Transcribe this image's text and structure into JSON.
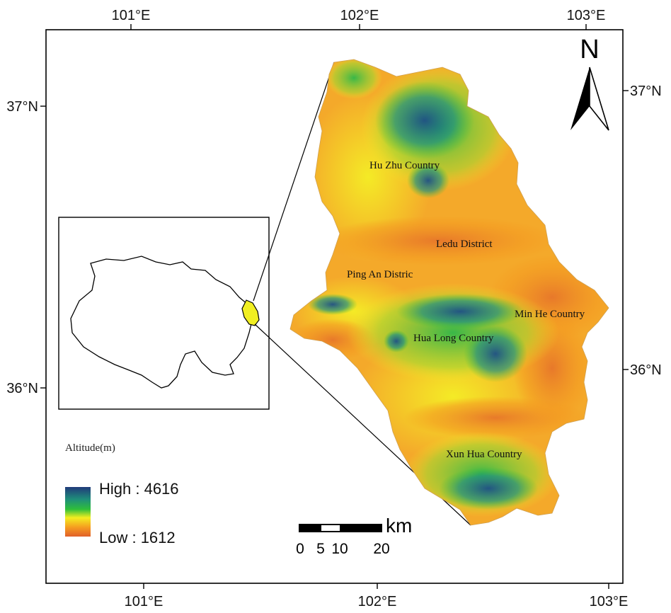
{
  "ticks": {
    "top": [
      "101°E",
      "102°E",
      "103°E"
    ],
    "bottom": [
      "101°E",
      "102°E",
      "103°E"
    ],
    "left": [
      "37°N",
      "36°N"
    ],
    "right": [
      "37°N",
      "36°N"
    ]
  },
  "north_arrow": {
    "letter": "N"
  },
  "places": {
    "huzhu": "Hu Zhu Country",
    "ledu": "Ledu District",
    "pingan": "Ping An Distric",
    "minhe": "Min He Country",
    "hualong": "Hua Long Country",
    "xunhua": "Xun Hua Country"
  },
  "legend": {
    "title": "Altitude(m)",
    "high": "High : 4616",
    "low": "Low : 1612",
    "high_value": 4616,
    "low_value": 1612,
    "colors": [
      "#203a7a",
      "#1f8f7a",
      "#2fbf3a",
      "#f4ee20",
      "#f59a20",
      "#e0602a"
    ]
  },
  "scale_bar": {
    "unit": "km",
    "labels": [
      "0",
      "5",
      "10",
      "20"
    ]
  },
  "colors": {
    "frame": "#000000",
    "inset_highlight": "#f1ef22"
  }
}
